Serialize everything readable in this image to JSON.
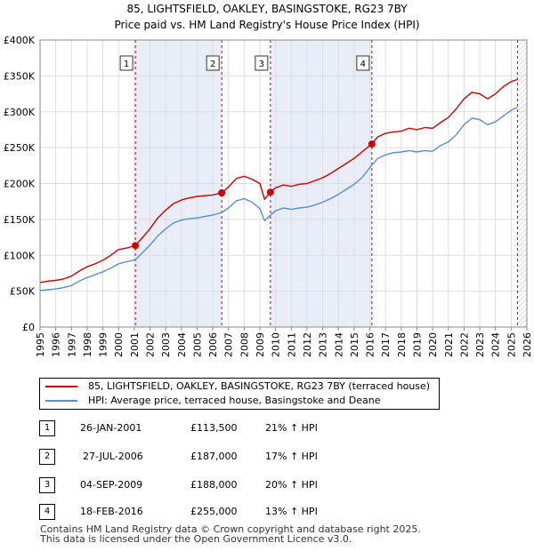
{
  "chart_data": {
    "type": "line",
    "title": "85, LIGHTSFIELD, OAKLEY, BASINGSTOKE, RG23 7BY",
    "subtitle": "Price paid vs. HM Land Registry's House Price Index (HPI)",
    "xlim": [
      1995,
      2026
    ],
    "ylim": [
      0,
      400000
    ],
    "y_ticks": [
      0,
      50000,
      100000,
      150000,
      200000,
      250000,
      300000,
      350000,
      400000
    ],
    "y_tick_labels": [
      "£0",
      "£50K",
      "£100K",
      "£150K",
      "£200K",
      "£250K",
      "£300K",
      "£350K",
      "£400K"
    ],
    "x_ticks": [
      1995,
      1996,
      1997,
      1998,
      1999,
      2000,
      2001,
      2002,
      2003,
      2004,
      2005,
      2006,
      2007,
      2008,
      2009,
      2010,
      2011,
      2012,
      2013,
      2014,
      2015,
      2016,
      2017,
      2018,
      2019,
      2020,
      2021,
      2022,
      2023,
      2024,
      2025,
      2026
    ],
    "x_tick_labels": [
      "1995",
      "1996",
      "1997",
      "1998",
      "1999",
      "2000",
      "2001",
      "2002",
      "2003",
      "2004",
      "2005",
      "2006",
      "2007",
      "2008",
      "2009",
      "2010",
      "2011",
      "2012",
      "2013",
      "2014",
      "2015",
      "2016",
      "2017",
      "2018",
      "2019",
      "2020",
      "2021",
      "2022",
      "2023",
      "2024",
      "2025",
      "2026"
    ],
    "grid": true,
    "shaded_periods": [
      [
        2001.07,
        2006.57
      ],
      [
        2009.67,
        2016.13
      ]
    ],
    "data_end": 2025.4,
    "series": [
      {
        "name": "85, LIGHTSFIELD, OAKLEY, BASINGSTOKE, RG23 7BY (terraced house)",
        "color": "#cc0000",
        "x": [
          1995.0,
          1995.5,
          1996.0,
          1996.5,
          1997.0,
          1997.5,
          1998.0,
          1998.5,
          1999.0,
          1999.5,
          2000.0,
          2000.5,
          2001.07,
          2001.5,
          2002.0,
          2002.5,
          2003.0,
          2003.5,
          2004.0,
          2004.5,
          2005.0,
          2005.5,
          2006.0,
          2006.57,
          2007.0,
          2007.5,
          2008.0,
          2008.5,
          2009.0,
          2009.3,
          2009.67,
          2010.0,
          2010.5,
          2011.0,
          2011.5,
          2012.0,
          2012.5,
          2013.0,
          2013.5,
          2014.0,
          2014.5,
          2015.0,
          2015.5,
          2016.13,
          2016.5,
          2017.0,
          2017.5,
          2018.0,
          2018.5,
          2019.0,
          2019.5,
          2020.0,
          2020.5,
          2021.0,
          2021.5,
          2022.0,
          2022.5,
          2023.0,
          2023.5,
          2024.0,
          2024.5,
          2025.0,
          2025.4
        ],
        "values": [
          62000,
          64000,
          65000,
          67000,
          71000,
          78000,
          84000,
          88000,
          93000,
          100000,
          108000,
          110000,
          113500,
          124000,
          137000,
          152000,
          163000,
          172000,
          177000,
          180000,
          182000,
          183000,
          184000,
          187000,
          195000,
          207000,
          210000,
          206000,
          200000,
          178000,
          188000,
          194000,
          198000,
          196000,
          199000,
          200000,
          204000,
          208000,
          214000,
          221000,
          228000,
          235000,
          244000,
          255000,
          265000,
          270000,
          272000,
          273000,
          277000,
          275000,
          278000,
          277000,
          285000,
          292000,
          304000,
          318000,
          327000,
          325000,
          318000,
          325000,
          335000,
          342000,
          345000
        ]
      },
      {
        "name": "HPI: Average price, terraced house, Basingstoke and Deane",
        "color": "#5b8ec9",
        "x": [
          1995.0,
          1995.5,
          1996.0,
          1996.5,
          1997.0,
          1997.5,
          1998.0,
          1998.5,
          1999.0,
          1999.5,
          2000.0,
          2000.5,
          2001.07,
          2001.5,
          2002.0,
          2002.5,
          2003.0,
          2003.5,
          2004.0,
          2004.5,
          2005.0,
          2005.5,
          2006.0,
          2006.57,
          2007.0,
          2007.5,
          2008.0,
          2008.5,
          2009.0,
          2009.3,
          2009.67,
          2010.0,
          2010.5,
          2011.0,
          2011.5,
          2012.0,
          2012.5,
          2013.0,
          2013.5,
          2014.0,
          2014.5,
          2015.0,
          2015.5,
          2016.13,
          2016.5,
          2017.0,
          2017.5,
          2018.0,
          2018.5,
          2019.0,
          2019.5,
          2020.0,
          2020.5,
          2021.0,
          2021.5,
          2022.0,
          2022.5,
          2023.0,
          2023.5,
          2024.0,
          2024.5,
          2025.0,
          2025.4
        ],
        "values": [
          51000,
          52000,
          53000,
          55000,
          58000,
          64000,
          69000,
          73000,
          77000,
          82000,
          88000,
          91000,
          93800,
          103000,
          114000,
          127000,
          137000,
          145000,
          149000,
          151000,
          152000,
          154000,
          156000,
          159800,
          166000,
          176000,
          179000,
          174000,
          165000,
          148000,
          156000,
          162000,
          166000,
          164000,
          166000,
          167000,
          170000,
          174000,
          179000,
          185000,
          192000,
          199000,
          208000,
          225700,
          235000,
          240000,
          243000,
          244000,
          246000,
          244000,
          246000,
          245000,
          253000,
          258000,
          268000,
          282000,
          291000,
          289000,
          282000,
          286000,
          294000,
          302000,
          306000
        ]
      }
    ],
    "sales": [
      {
        "id": "1",
        "x": 2001.07,
        "value": 113500
      },
      {
        "id": "2",
        "x": 2006.57,
        "value": 187000
      },
      {
        "id": "3",
        "x": 2009.67,
        "value": 188000
      },
      {
        "id": "4",
        "x": 2016.13,
        "value": 255000
      }
    ]
  },
  "legend": {
    "property_label": "85, LIGHTSFIELD, OAKLEY, BASINGSTOKE, RG23 7BY (terraced house)",
    "hpi_label": "HPI: Average price, terraced house, Basingstoke and Deane",
    "property_color": "#cc0000",
    "hpi_color": "#5b8ec9"
  },
  "sales_table": [
    {
      "num": "1",
      "date": "26-JAN-2001",
      "price": "£113,500",
      "hpi": "21% ↑ HPI"
    },
    {
      "num": "2",
      "date": "27-JUL-2006",
      "price": "£187,000",
      "hpi": "17% ↑ HPI"
    },
    {
      "num": "3",
      "date": "04-SEP-2009",
      "price": "£188,000",
      "hpi": "20% ↑ HPI"
    },
    {
      "num": "4",
      "date": "18-FEB-2016",
      "price": "£255,000",
      "hpi": "13% ↑ HPI"
    }
  ],
  "footer": {
    "line1": "Contains HM Land Registry data © Crown copyright and database right 2025.",
    "line2": "This data is licensed under the Open Government Licence v3.0."
  }
}
